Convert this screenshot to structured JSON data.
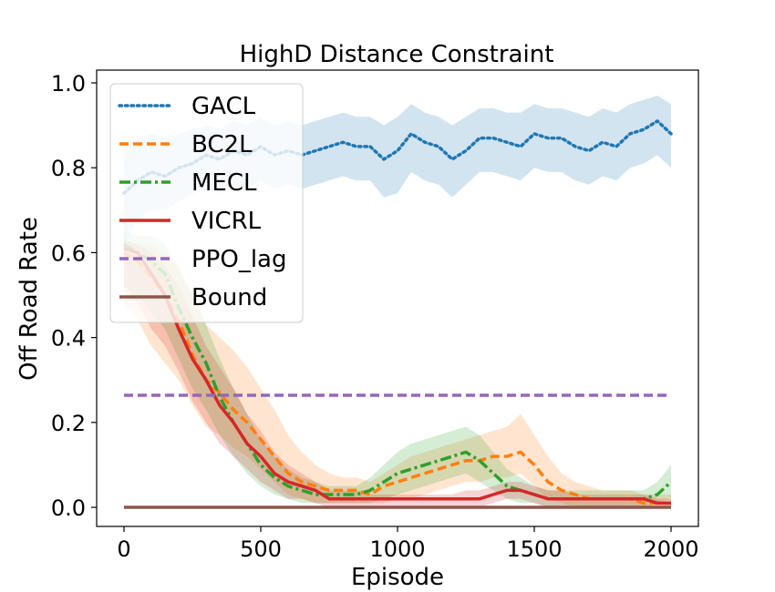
{
  "chart_data": {
    "type": "line",
    "title": "HighD Distance Constraint",
    "xlabel": "Episode",
    "ylabel": "Off Road Rate",
    "xlim": [
      -100,
      2100
    ],
    "ylim": [
      -0.045,
      1.03
    ],
    "xticks": [
      0,
      500,
      1000,
      1500,
      2000
    ],
    "xtick_labels": [
      "0",
      "500",
      "1000",
      "1500",
      "2000"
    ],
    "yticks": [
      0.0,
      0.2,
      0.4,
      0.6,
      0.8,
      1.0
    ],
    "ytick_labels": [
      "0.0",
      "0.2",
      "0.4",
      "0.6",
      "0.8",
      "1.0"
    ],
    "grid": false,
    "legend_position": "upper-left",
    "series": [
      {
        "name": "GACL",
        "color": "#1f77b4",
        "style": "dotted",
        "x": [
          0,
          50,
          100,
          150,
          200,
          250,
          300,
          350,
          400,
          450,
          500,
          550,
          600,
          650,
          700,
          750,
          800,
          850,
          900,
          950,
          1000,
          1050,
          1100,
          1150,
          1200,
          1250,
          1300,
          1350,
          1400,
          1450,
          1500,
          1550,
          1600,
          1650,
          1700,
          1750,
          1800,
          1850,
          1900,
          1950,
          2000
        ],
        "values": [
          0.74,
          0.77,
          0.79,
          0.78,
          0.8,
          0.81,
          0.83,
          0.82,
          0.84,
          0.83,
          0.85,
          0.83,
          0.84,
          0.83,
          0.84,
          0.85,
          0.86,
          0.85,
          0.85,
          0.82,
          0.84,
          0.88,
          0.86,
          0.85,
          0.82,
          0.84,
          0.87,
          0.87,
          0.86,
          0.85,
          0.88,
          0.87,
          0.87,
          0.85,
          0.84,
          0.86,
          0.85,
          0.88,
          0.89,
          0.91,
          0.88
        ],
        "lower": [
          0.62,
          0.68,
          0.7,
          0.7,
          0.72,
          0.74,
          0.75,
          0.74,
          0.76,
          0.75,
          0.77,
          0.75,
          0.76,
          0.75,
          0.76,
          0.77,
          0.78,
          0.77,
          0.77,
          0.73,
          0.74,
          0.79,
          0.77,
          0.76,
          0.73,
          0.76,
          0.79,
          0.79,
          0.78,
          0.77,
          0.8,
          0.79,
          0.79,
          0.77,
          0.76,
          0.78,
          0.77,
          0.8,
          0.81,
          0.83,
          0.8
        ],
        "upper": [
          0.85,
          0.87,
          0.88,
          0.87,
          0.88,
          0.89,
          0.9,
          0.89,
          0.91,
          0.9,
          0.92,
          0.9,
          0.91,
          0.9,
          0.91,
          0.92,
          0.93,
          0.92,
          0.92,
          0.9,
          0.92,
          0.95,
          0.93,
          0.92,
          0.9,
          0.92,
          0.94,
          0.94,
          0.93,
          0.93,
          0.95,
          0.94,
          0.94,
          0.93,
          0.92,
          0.94,
          0.93,
          0.95,
          0.96,
          0.97,
          0.95
        ]
      },
      {
        "name": "BC2L",
        "color": "#ff7f0e",
        "style": "dashed",
        "x": [
          0,
          50,
          100,
          150,
          200,
          250,
          300,
          350,
          400,
          450,
          500,
          550,
          600,
          650,
          700,
          750,
          800,
          850,
          900,
          950,
          1000,
          1050,
          1100,
          1150,
          1200,
          1250,
          1300,
          1350,
          1400,
          1450,
          1500,
          1550,
          1600,
          1650,
          1700,
          1750,
          1800,
          1850,
          1900,
          1950,
          2000
        ],
        "values": [
          0.6,
          0.58,
          0.54,
          0.5,
          0.44,
          0.36,
          0.3,
          0.27,
          0.23,
          0.2,
          0.16,
          0.12,
          0.08,
          0.06,
          0.05,
          0.04,
          0.04,
          0.04,
          0.03,
          0.05,
          0.06,
          0.07,
          0.08,
          0.09,
          0.1,
          0.11,
          0.11,
          0.12,
          0.12,
          0.13,
          0.1,
          0.06,
          0.04,
          0.03,
          0.02,
          0.02,
          0.02,
          0.02,
          0.01,
          0.01,
          0.01
        ],
        "lower": [
          0.48,
          0.44,
          0.38,
          0.34,
          0.3,
          0.24,
          0.19,
          0.17,
          0.14,
          0.12,
          0.09,
          0.06,
          0.03,
          0.02,
          0.01,
          0.01,
          0.01,
          0.01,
          0.01,
          0.01,
          0.02,
          0.02,
          0.03,
          0.04,
          0.05,
          0.06,
          0.06,
          0.07,
          0.07,
          0.08,
          0.05,
          0.02,
          0.01,
          0.0,
          0.0,
          0.0,
          0.0,
          0.0,
          0.0,
          0.0,
          0.0
        ],
        "upper": [
          0.63,
          0.62,
          0.62,
          0.6,
          0.57,
          0.5,
          0.43,
          0.4,
          0.37,
          0.33,
          0.28,
          0.23,
          0.17,
          0.13,
          0.1,
          0.08,
          0.07,
          0.07,
          0.06,
          0.08,
          0.1,
          0.12,
          0.13,
          0.14,
          0.15,
          0.16,
          0.17,
          0.18,
          0.19,
          0.22,
          0.17,
          0.12,
          0.08,
          0.06,
          0.05,
          0.04,
          0.04,
          0.04,
          0.03,
          0.03,
          0.03
        ]
      },
      {
        "name": "MECL",
        "color": "#2ca02c",
        "style": "dashdot",
        "x": [
          0,
          50,
          100,
          150,
          200,
          250,
          300,
          350,
          400,
          450,
          500,
          550,
          600,
          650,
          700,
          750,
          800,
          850,
          900,
          950,
          1000,
          1050,
          1100,
          1150,
          1200,
          1250,
          1300,
          1350,
          1400,
          1450,
          1500,
          1550,
          1600,
          1650,
          1700,
          1750,
          1800,
          1850,
          1900,
          1950,
          2000
        ],
        "values": [
          0.62,
          0.6,
          0.58,
          0.55,
          0.47,
          0.4,
          0.34,
          0.26,
          0.2,
          0.15,
          0.1,
          0.07,
          0.05,
          0.04,
          0.03,
          0.03,
          0.03,
          0.03,
          0.04,
          0.06,
          0.08,
          0.09,
          0.1,
          0.11,
          0.12,
          0.13,
          0.11,
          0.08,
          0.05,
          0.04,
          0.03,
          0.02,
          0.02,
          0.02,
          0.02,
          0.02,
          0.02,
          0.02,
          0.02,
          0.03,
          0.06
        ],
        "lower": [
          0.52,
          0.5,
          0.46,
          0.42,
          0.35,
          0.28,
          0.23,
          0.17,
          0.12,
          0.08,
          0.05,
          0.03,
          0.02,
          0.01,
          0.01,
          0.01,
          0.01,
          0.01,
          0.01,
          0.02,
          0.03,
          0.04,
          0.05,
          0.06,
          0.07,
          0.08,
          0.06,
          0.04,
          0.02,
          0.01,
          0.01,
          0.0,
          0.0,
          0.0,
          0.0,
          0.0,
          0.0,
          0.0,
          0.0,
          0.01,
          0.02
        ],
        "upper": [
          0.65,
          0.64,
          0.64,
          0.62,
          0.56,
          0.5,
          0.43,
          0.35,
          0.28,
          0.22,
          0.16,
          0.12,
          0.09,
          0.07,
          0.06,
          0.05,
          0.05,
          0.05,
          0.07,
          0.1,
          0.13,
          0.15,
          0.16,
          0.17,
          0.18,
          0.19,
          0.17,
          0.13,
          0.09,
          0.07,
          0.05,
          0.04,
          0.04,
          0.04,
          0.04,
          0.04,
          0.04,
          0.04,
          0.04,
          0.06,
          0.1
        ]
      },
      {
        "name": "VICRL",
        "color": "#d62728",
        "style": "solid",
        "x": [
          0,
          50,
          100,
          150,
          200,
          250,
          300,
          350,
          400,
          450,
          500,
          550,
          600,
          650,
          700,
          750,
          800,
          850,
          900,
          950,
          1000,
          1050,
          1100,
          1150,
          1200,
          1250,
          1300,
          1350,
          1400,
          1450,
          1500,
          1550,
          1600,
          1650,
          1700,
          1750,
          1800,
          1850,
          1900,
          1950,
          2000
        ],
        "values": [
          0.61,
          0.6,
          0.55,
          0.5,
          0.42,
          0.35,
          0.3,
          0.24,
          0.2,
          0.15,
          0.12,
          0.08,
          0.06,
          0.05,
          0.04,
          0.02,
          0.02,
          0.02,
          0.02,
          0.02,
          0.02,
          0.02,
          0.02,
          0.02,
          0.02,
          0.02,
          0.02,
          0.03,
          0.04,
          0.04,
          0.03,
          0.02,
          0.02,
          0.02,
          0.02,
          0.02,
          0.02,
          0.02,
          0.02,
          0.01,
          0.01
        ],
        "lower": [
          0.52,
          0.48,
          0.42,
          0.38,
          0.32,
          0.25,
          0.2,
          0.15,
          0.12,
          0.09,
          0.06,
          0.04,
          0.02,
          0.02,
          0.01,
          0.0,
          0.0,
          0.0,
          0.0,
          0.0,
          0.0,
          0.0,
          0.0,
          0.0,
          0.0,
          0.0,
          0.0,
          0.01,
          0.02,
          0.02,
          0.01,
          0.0,
          0.0,
          0.0,
          0.0,
          0.0,
          0.0,
          0.0,
          0.0,
          0.0,
          0.0
        ],
        "upper": [
          0.63,
          0.62,
          0.6,
          0.57,
          0.52,
          0.45,
          0.38,
          0.33,
          0.28,
          0.22,
          0.18,
          0.13,
          0.1,
          0.08,
          0.06,
          0.04,
          0.04,
          0.04,
          0.03,
          0.03,
          0.03,
          0.03,
          0.03,
          0.03,
          0.03,
          0.04,
          0.04,
          0.05,
          0.06,
          0.06,
          0.05,
          0.04,
          0.04,
          0.03,
          0.03,
          0.03,
          0.03,
          0.03,
          0.03,
          0.02,
          0.02
        ]
      },
      {
        "name": "PPO_lag",
        "color": "#9467bd",
        "style": "dashed",
        "x": [
          0,
          2000
        ],
        "values": [
          0.264,
          0.264
        ]
      },
      {
        "name": "Bound",
        "color": "#8c564b",
        "style": "solid",
        "x": [
          0,
          2000
        ],
        "values": [
          0.0,
          0.0
        ]
      }
    ]
  }
}
